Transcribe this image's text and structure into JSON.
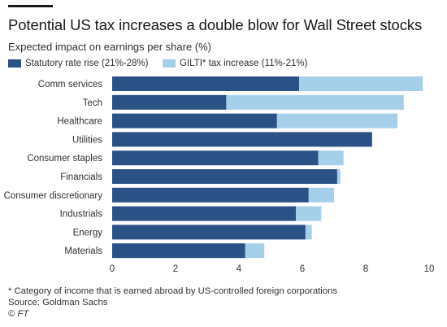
{
  "header": {
    "title": "Potential US tax increases a double blow for Wall Street stocks",
    "subtitle": "Expected impact on earnings per share (%)"
  },
  "footer": {
    "note": "* Category of income that is earned abroad by US-controlled foreign corporations",
    "source": "Source: Goldman Sachs",
    "credit": "© FT"
  },
  "colors": {
    "statutory": "#2a5286",
    "gilti": "#a6d0ea",
    "axis": "#33302e"
  },
  "chart_data": {
    "type": "bar",
    "orientation": "horizontal",
    "stacked": true,
    "categories": [
      "Comm services",
      "Tech",
      "Healthcare",
      "Utilities",
      "Consumer staples",
      "Financials",
      "Consumer discretionary",
      "Industrials",
      "Energy",
      "Materials"
    ],
    "series": [
      {
        "name": "Statutory rate rise (21%-28%)",
        "values": [
          5.9,
          3.6,
          5.2,
          8.2,
          6.5,
          7.1,
          6.2,
          5.8,
          6.1,
          4.2
        ]
      },
      {
        "name": "GILTI* tax increase (11%-21%)",
        "values": [
          3.9,
          5.6,
          3.8,
          0.0,
          0.8,
          0.1,
          0.8,
          0.8,
          0.2,
          0.6
        ]
      }
    ],
    "xlim": [
      0,
      10
    ],
    "xticks": [
      0,
      2,
      4,
      6,
      8,
      10
    ],
    "grid": false,
    "legend_position": "top-left"
  }
}
